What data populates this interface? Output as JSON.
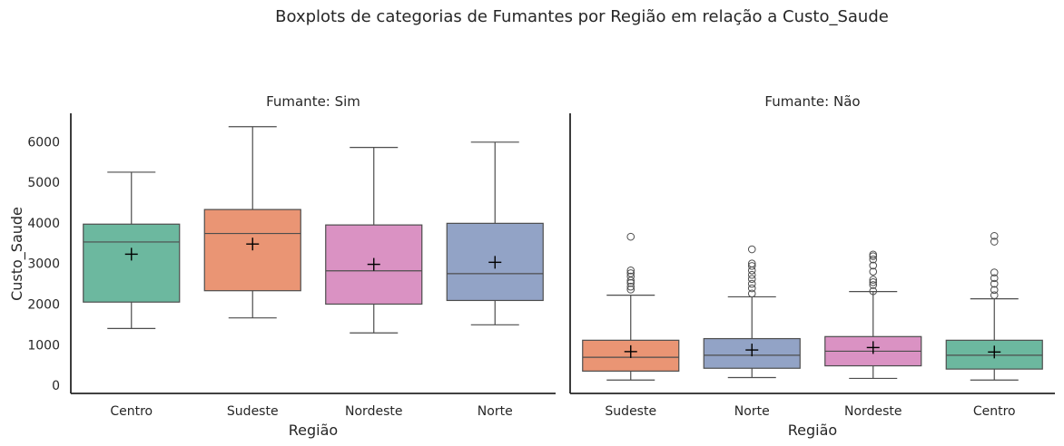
{
  "chart_data": {
    "type": "box",
    "suptitle": "Boxplots de categorias de Fumantes por Região em relação a Custo_Saude",
    "ylabel": "Custo_Saude",
    "ylim": [
      -200,
      6700
    ],
    "yticks": [
      0,
      1000,
      2000,
      3000,
      4000,
      5000,
      6000
    ],
    "colors": {
      "green": "#6cb89f",
      "orange": "#ea9574",
      "blue": "#92a3c6",
      "pink": "#da92c3"
    },
    "panels": [
      {
        "title": "Fumante: Sim",
        "xlabel": "Região",
        "categories": [
          "Centro",
          "Sudeste",
          "Nordeste",
          "Norte"
        ],
        "boxes": [
          {
            "whislo": 1400,
            "q1": 2050,
            "med": 3530,
            "q3": 3970,
            "whishi": 5250,
            "mean": 3230,
            "color": "#6cb89f",
            "fliers": []
          },
          {
            "whislo": 1660,
            "q1": 2330,
            "med": 3740,
            "q3": 4330,
            "whishi": 6370,
            "mean": 3480,
            "color": "#ea9574",
            "fliers": []
          },
          {
            "whislo": 1290,
            "q1": 2000,
            "med": 2820,
            "q3": 3950,
            "whishi": 5860,
            "mean": 2980,
            "color": "#da92c3",
            "fliers": []
          },
          {
            "whislo": 1490,
            "q1": 2090,
            "med": 2750,
            "q3": 3990,
            "whishi": 5990,
            "mean": 3030,
            "color": "#92a3c6",
            "fliers": []
          }
        ]
      },
      {
        "title": "Fumante: Não",
        "xlabel": "Região",
        "categories": [
          "Sudeste",
          "Norte",
          "Nordeste",
          "Centro"
        ],
        "boxes": [
          {
            "whislo": 130,
            "q1": 350,
            "med": 690,
            "q3": 1110,
            "whishi": 2220,
            "mean": 830,
            "color": "#ea9574",
            "fliers": [
              2360,
              2430,
              2520,
              2580,
              2680,
              2760,
              2830,
              3660
            ]
          },
          {
            "whislo": 190,
            "q1": 420,
            "med": 740,
            "q3": 1150,
            "whishi": 2180,
            "mean": 870,
            "color": "#92a3c6",
            "fliers": [
              2260,
              2390,
              2500,
              2620,
              2720,
              2830,
              2940,
              3000,
              3350
            ]
          },
          {
            "whislo": 170,
            "q1": 480,
            "med": 840,
            "q3": 1200,
            "whishi": 2310,
            "mean": 930,
            "color": "#da92c3",
            "fliers": [
              2320,
              2470,
              2540,
              2600,
              2800,
              2950,
              3100,
              3180,
              3220
            ]
          },
          {
            "whislo": 130,
            "q1": 400,
            "med": 740,
            "q3": 1110,
            "whishi": 2130,
            "mean": 820,
            "color": "#6cb89f",
            "fliers": [
              2220,
              2350,
              2500,
              2640,
              2780,
              3540,
              3680
            ]
          }
        ]
      }
    ]
  }
}
